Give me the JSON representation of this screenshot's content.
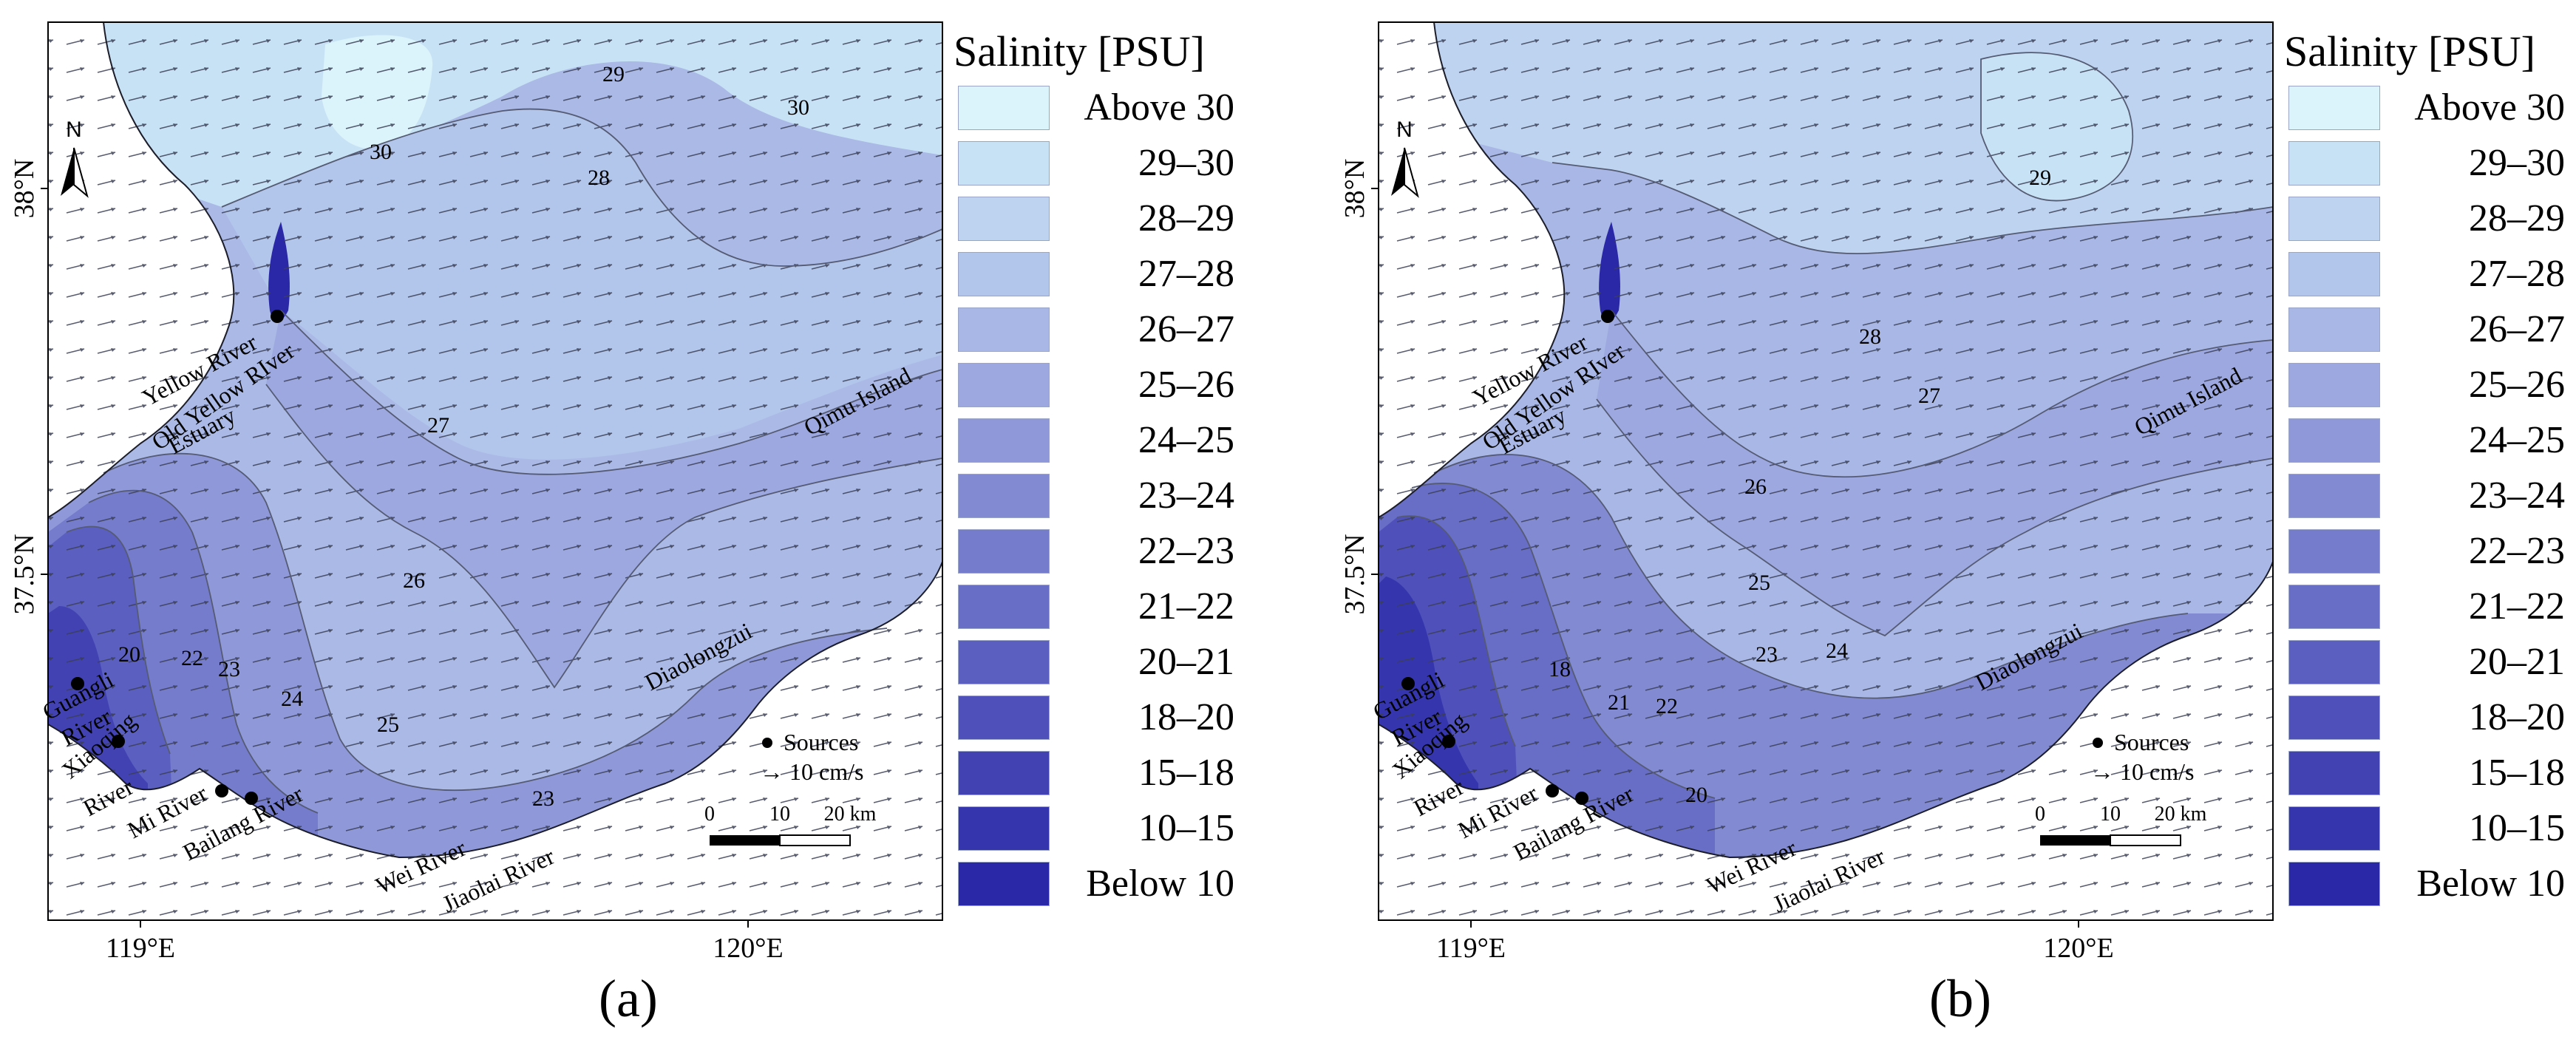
{
  "legend": {
    "title": "Salinity [PSU]",
    "items": [
      {
        "label": "Above 30",
        "color": "#dbf3fa"
      },
      {
        "label": "29–30",
        "color": "#c8e2f5"
      },
      {
        "label": "28–29",
        "color": "#bdd3ef"
      },
      {
        "label": "27–28",
        "color": "#b2c5ea"
      },
      {
        "label": "26–27",
        "color": "#a8b7e5"
      },
      {
        "label": "25–26",
        "color": "#9ca8df"
      },
      {
        "label": "24–25",
        "color": "#8f99d9"
      },
      {
        "label": "23–24",
        "color": "#828ad2"
      },
      {
        "label": "22–23",
        "color": "#757ccc"
      },
      {
        "label": "21–22",
        "color": "#686dc6"
      },
      {
        "label": "20–21",
        "color": "#5b5fc0"
      },
      {
        "label": "18–20",
        "color": "#4f50b9"
      },
      {
        "label": "15–18",
        "color": "#4242b3"
      },
      {
        "label": "10–15",
        "color": "#3535ad"
      },
      {
        "label": "Below 10",
        "color": "#2a28a6"
      }
    ]
  },
  "axes": {
    "lon_ticks": [
      "119°E",
      "120°E"
    ],
    "lat_ticks": [
      "38°N",
      "37.5°N"
    ]
  },
  "north_arrow": "N",
  "sources_legend": {
    "sources": "Sources",
    "vector": "→ 10 cm/s"
  },
  "scale_bar": {
    "labels": [
      "0",
      "10",
      "20 km"
    ]
  },
  "place_labels": {
    "yellow_river": "Yellow River",
    "old_yellow_river": "Old Yellow RIver",
    "estuary": "Estuary",
    "qimu_island": "Qimu Island",
    "diaolongzui": "Diaolongzui",
    "guangli": "Guangli",
    "guangli_river": "River",
    "xiaoqing": "Xiaoqing",
    "xiaoqing_river": "River",
    "mi_river": "Mi River",
    "bailang_river": "Bailang River",
    "wei_river": "Wei River",
    "jiaolai_river": "Jiaolai River"
  },
  "panels": [
    {
      "id": "a",
      "label": "(a)",
      "contour_labels": [
        "29",
        "30",
        "30",
        "28",
        "27",
        "26",
        "25",
        "24",
        "23",
        "22",
        "20",
        "23"
      ]
    },
    {
      "id": "b",
      "label": "(b)",
      "contour_labels": [
        "29",
        "28",
        "27",
        "26",
        "25",
        "24",
        "23",
        "22",
        "21",
        "20",
        "18"
      ]
    }
  ]
}
